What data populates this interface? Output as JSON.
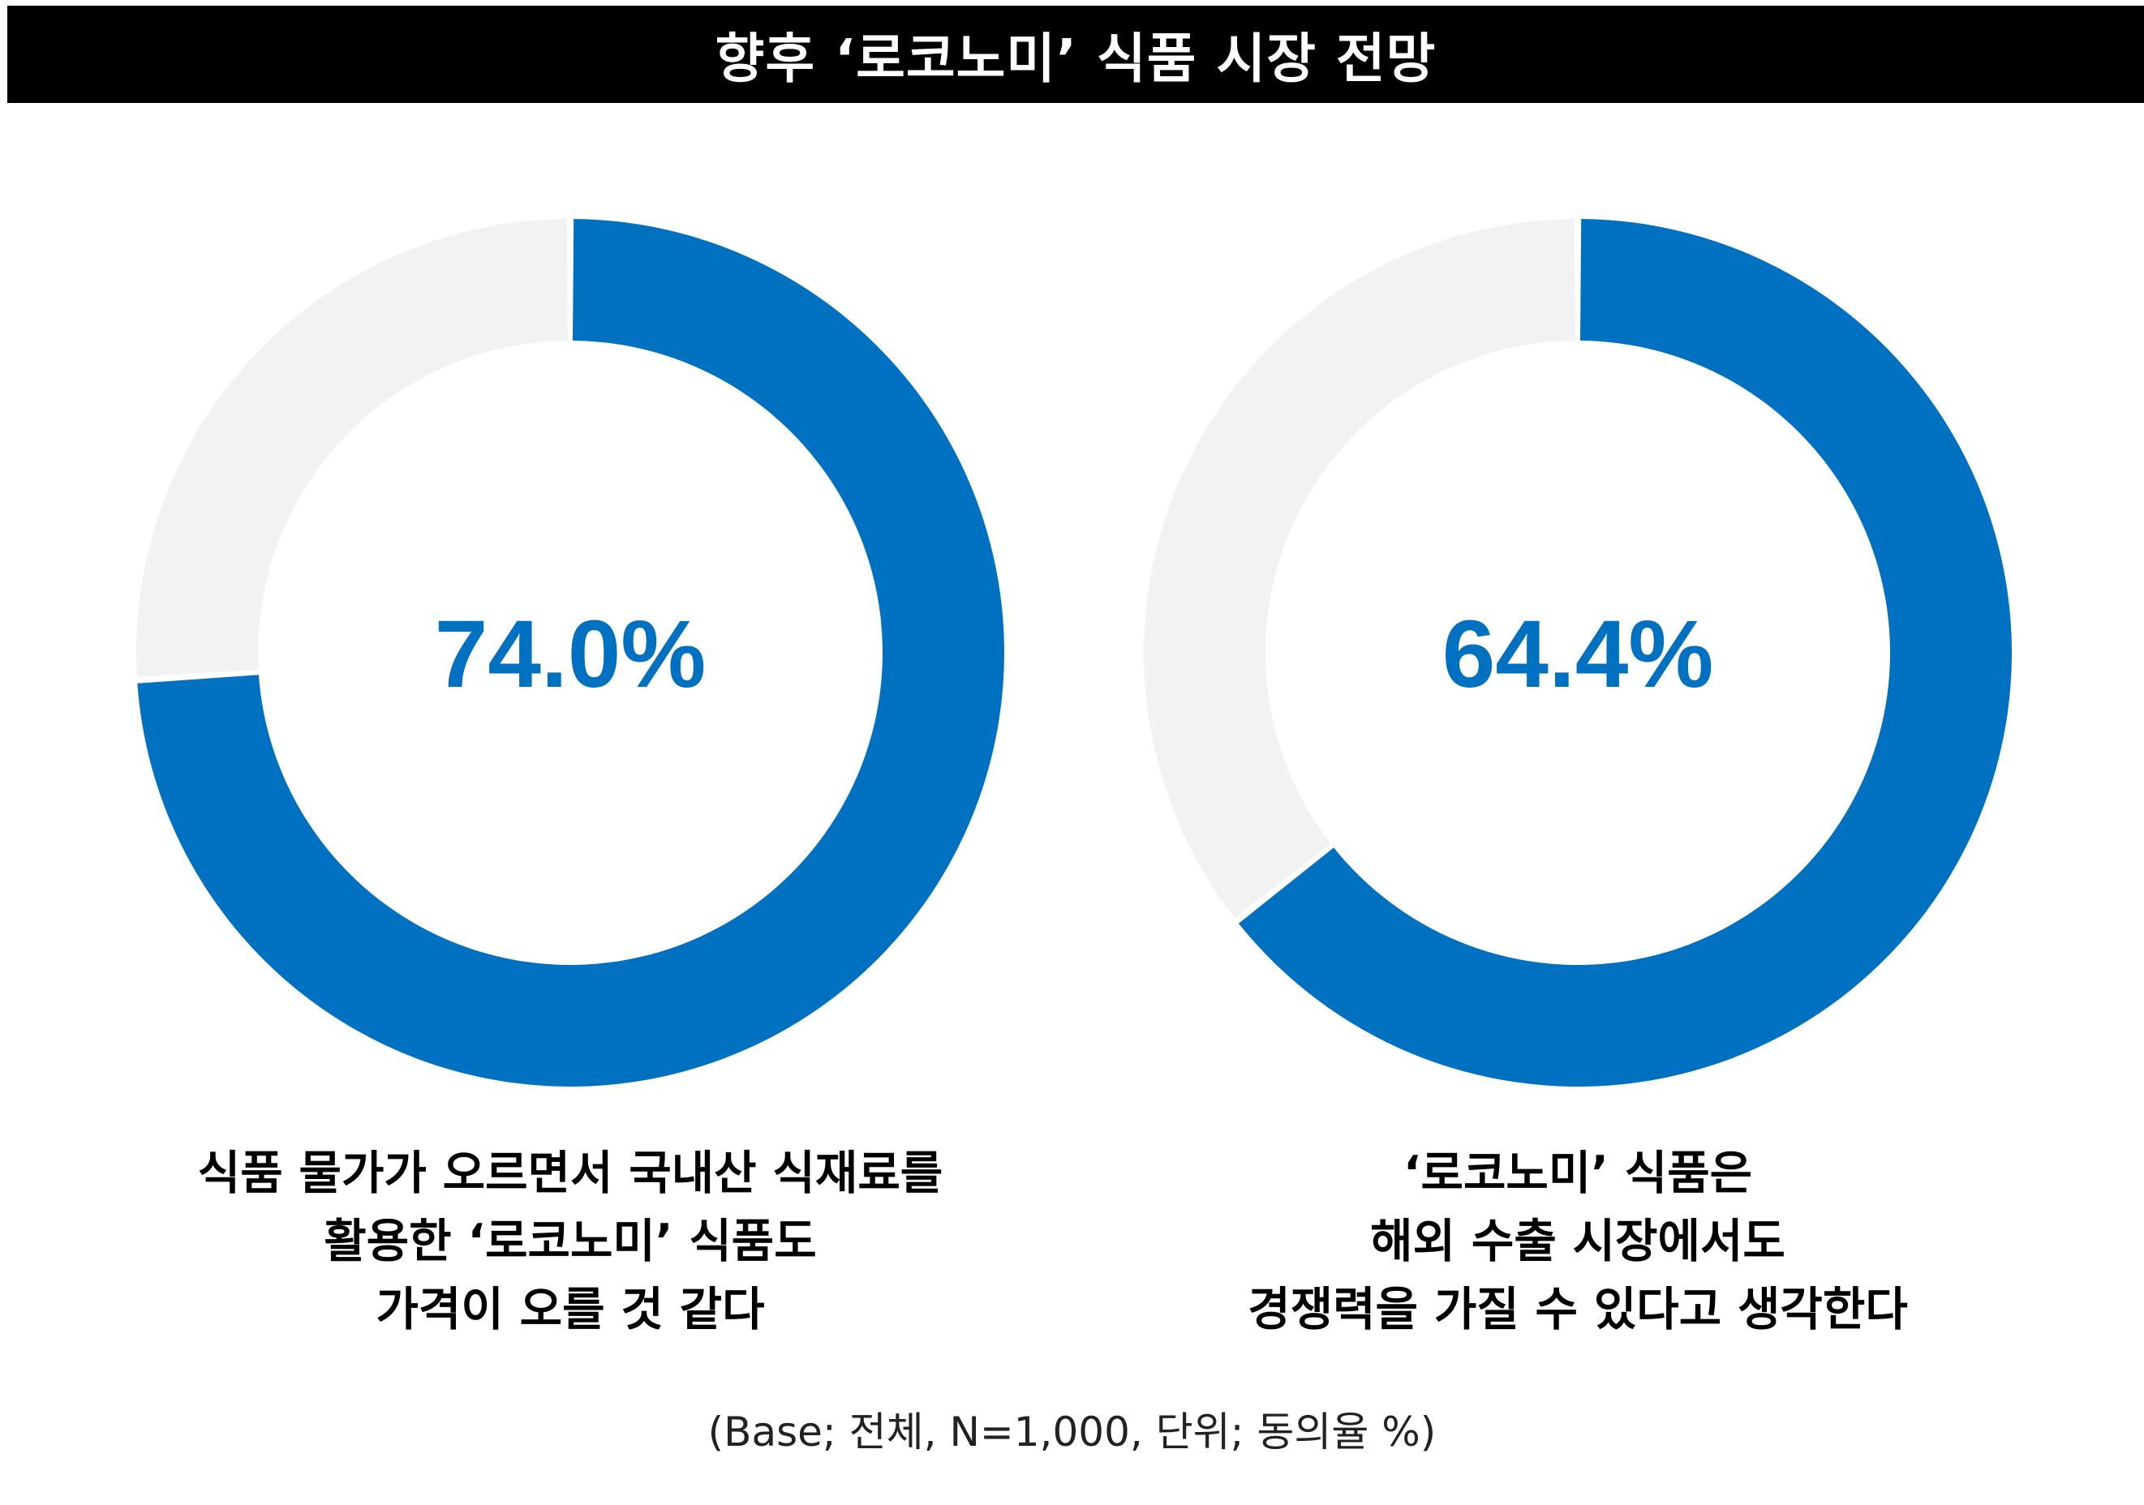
{
  "title": "향후 ‘로코노미’ 식품 시장 전망",
  "colors": {
    "value": "#0070C0",
    "remainder": "#F2F2F2",
    "title_bg": "#000000",
    "title_text": "#FFFFFF"
  },
  "chart_data": [
    {
      "type": "pie",
      "variant": "donut",
      "value": 74.0,
      "value_label": "74.0%",
      "caption_lines": [
        "식품 물가가 오르면서 국내산 식재료를",
        "활용한 ‘로코노미’ 식품도",
        "가격이 오를 것 같다"
      ]
    },
    {
      "type": "pie",
      "variant": "donut",
      "value": 64.4,
      "value_label": "64.4%",
      "caption_lines": [
        "‘로코노미’ 식품은",
        "해외 수출 시장에서도",
        "경쟁력을 가질 수 있다고 생각한다"
      ]
    }
  ],
  "footnote": "(Base; 전체, N=1,000, 단위; 동의율 %)"
}
